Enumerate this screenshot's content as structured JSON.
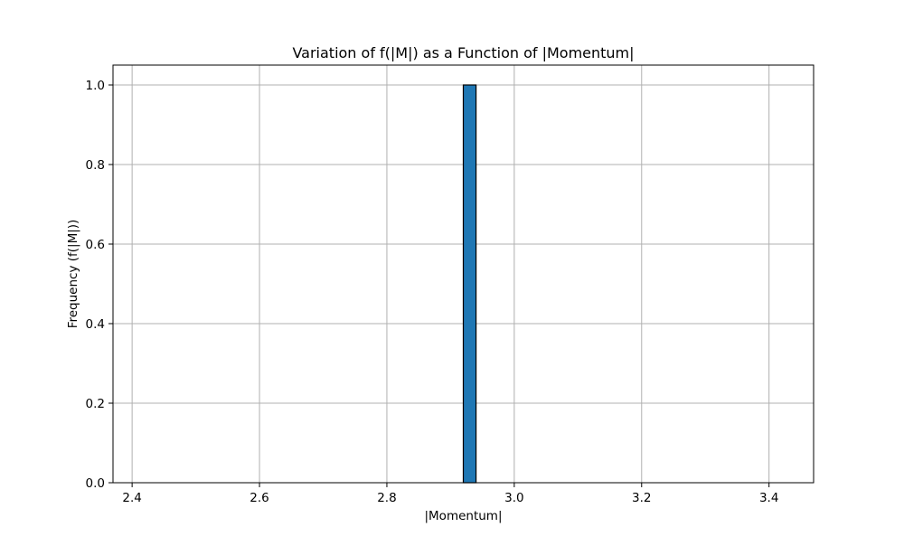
{
  "chart_data": {
    "type": "bar",
    "title": "Variation of f(|M|) as a Function of |Momentum|",
    "xlabel": "|Momentum|",
    "ylabel": "Frequency (f(|M|))",
    "xlim": [
      2.37,
      3.47
    ],
    "ylim": [
      0.0,
      1.05
    ],
    "x_ticks": [
      2.4,
      2.6,
      2.8,
      3.0,
      3.2,
      3.4
    ],
    "x_tick_labels": [
      "2.4",
      "2.6",
      "2.8",
      "3.0",
      "3.2",
      "3.4"
    ],
    "y_ticks": [
      0.0,
      0.2,
      0.4,
      0.6,
      0.8,
      1.0
    ],
    "y_tick_labels": [
      "0.0",
      "0.2",
      "0.4",
      "0.6",
      "0.8",
      "1.0"
    ],
    "grid": true,
    "bins": {
      "start": 2.42,
      "width": 0.02,
      "counts": [
        0,
        0,
        0,
        0,
        0,
        0,
        0,
        0,
        0,
        0,
        0,
        0,
        0,
        0,
        0,
        0,
        0,
        0,
        0,
        0,
        0,
        0,
        0,
        0,
        0,
        1,
        0,
        0,
        0,
        0,
        0,
        0,
        0,
        0,
        0,
        0,
        0,
        0,
        0,
        0,
        0,
        0,
        0,
        0,
        0,
        0,
        0,
        0,
        0,
        0
      ]
    },
    "bar_color": "#1f77b4",
    "edge_color": "#000000",
    "grid_color": "#b0b0b0"
  }
}
